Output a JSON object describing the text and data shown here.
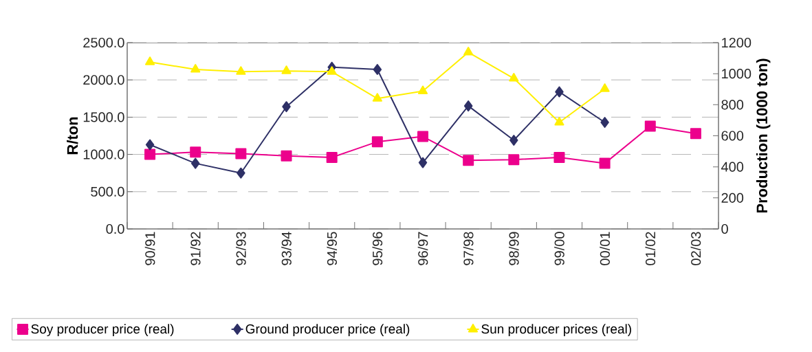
{
  "chart_data": {
    "type": "line",
    "ylabel": "R/ton",
    "y2label": "Production (1000 ton)",
    "categories": [
      "90/91",
      "91/92",
      "92/93",
      "93/94",
      "94/95",
      "95/96",
      "96/97",
      "97/98",
      "98/99",
      "99/00",
      "00/01",
      "01/02",
      "02/03"
    ],
    "series": [
      {
        "name": "Soy producer price (real)",
        "color": "#ec008c",
        "marker": "square",
        "values": [
          1000,
          1030,
          1010,
          980,
          960,
          1170,
          1240,
          920,
          930,
          960,
          880,
          1380,
          1280
        ]
      },
      {
        "name": "Ground producer price (real)",
        "color": "#2e3066",
        "marker": "diamond",
        "values": [
          1130,
          880,
          750,
          1640,
          2170,
          2140,
          890,
          1650,
          1190,
          1840,
          1430,
          null,
          null
        ]
      },
      {
        "name": "Sun producer prices (real)",
        "color": "#ffef00",
        "marker": "triangle",
        "values": [
          2240,
          2140,
          2110,
          2120,
          2110,
          1750,
          1850,
          2370,
          2020,
          1430,
          1880,
          null,
          null
        ]
      }
    ],
    "ylim": [
      0,
      2500
    ],
    "yticks": [
      {
        "value": 0,
        "label": "0.0"
      },
      {
        "value": 500,
        "label": "500.0"
      },
      {
        "value": 1000,
        "label": "1000.0"
      },
      {
        "value": 1500,
        "label": "1500.0"
      },
      {
        "value": 2000,
        "label": "2000.0"
      },
      {
        "value": 2500,
        "label": "2500.0"
      }
    ],
    "y2lim": [
      0,
      1200
    ],
    "y2ticks": [
      0,
      200,
      400,
      600,
      800,
      1000,
      1200
    ],
    "grid": "y",
    "legend": "bottom",
    "line_style": "solid"
  }
}
